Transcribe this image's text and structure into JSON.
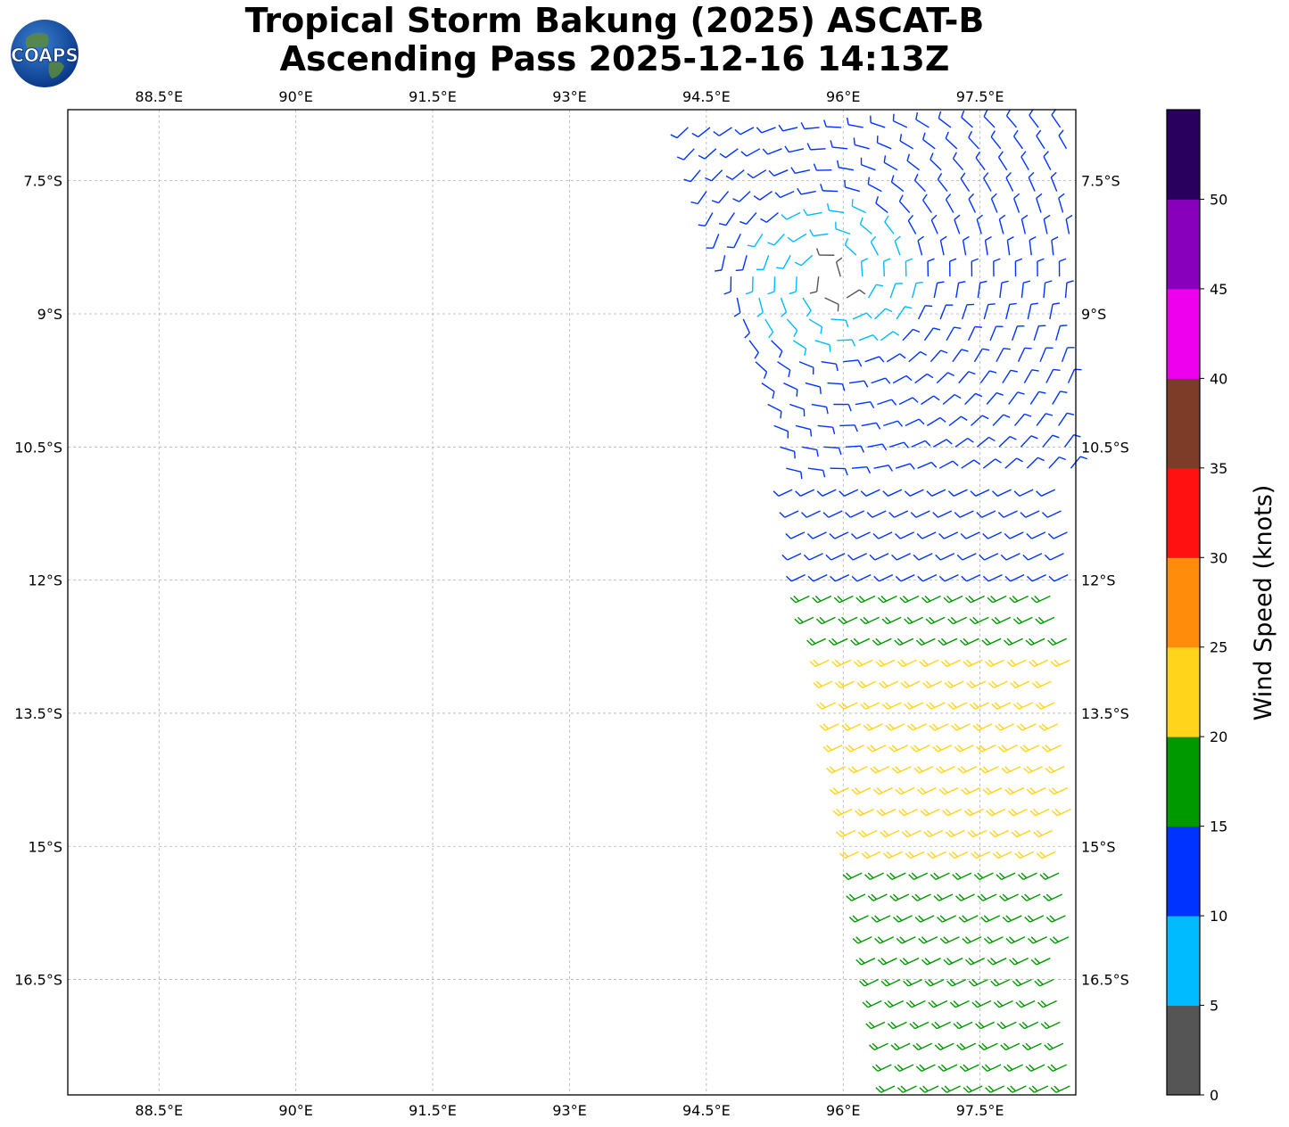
{
  "title": {
    "line1": "Tropical Storm Bakung (2025) ASCAT-B",
    "line2": "Ascending Pass 2025-12-16 14:13Z"
  },
  "logo": {
    "text": "COAPS",
    "icon": "globe-icon"
  },
  "map": {
    "lon_range": [
      87.5,
      98.55
    ],
    "lat_range": [
      -17.8,
      -6.7
    ],
    "lon_ticks": [
      "88.5°E",
      "90°E",
      "91.5°E",
      "93°E",
      "94.5°E",
      "96°E",
      "97.5°E"
    ],
    "lat_ticks": [
      "7.5°S",
      "9°S",
      "10.5°S",
      "12°S",
      "13.5°S",
      "15°S",
      "16.5°S"
    ],
    "gridlines": true,
    "storm_center": {
      "lon": 95.9,
      "lat": -8.6
    }
  },
  "colorbar": {
    "label": "Wind Speed (knots)",
    "ticks": [
      "0",
      "5",
      "10",
      "15",
      "20",
      "25",
      "30",
      "35",
      "40",
      "45",
      "50"
    ],
    "bins": [
      {
        "min": 0,
        "max": 5,
        "color": "#555555"
      },
      {
        "min": 5,
        "max": 10,
        "color": "#00bbff"
      },
      {
        "min": 10,
        "max": 15,
        "color": "#0033ff"
      },
      {
        "min": 15,
        "max": 20,
        "color": "#009900"
      },
      {
        "min": 20,
        "max": 25,
        "color": "#ffd41a"
      },
      {
        "min": 25,
        "max": 30,
        "color": "#ff8c0a"
      },
      {
        "min": 30,
        "max": 35,
        "color": "#ff1111"
      },
      {
        "min": 35,
        "max": 40,
        "color": "#7d3c28"
      },
      {
        "min": 40,
        "max": 45,
        "color": "#ee00ee"
      },
      {
        "min": 45,
        "max": 50,
        "color": "#8800bb"
      },
      {
        "min": 50,
        "max": 55,
        "color": "#2a005e"
      }
    ]
  }
}
